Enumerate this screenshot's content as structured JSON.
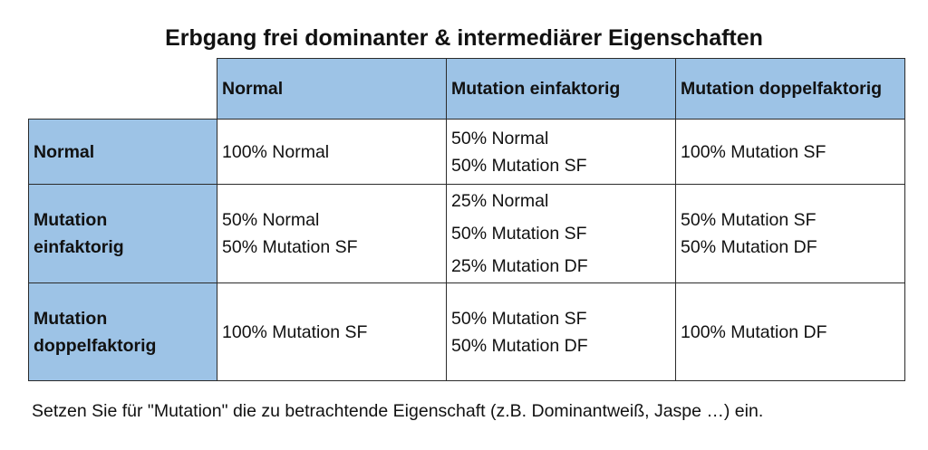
{
  "title": "Erbgang frei dominanter & intermediärer Eigenschaften",
  "colors": {
    "header_fill": "#9dc3e6",
    "border": "#2b2b2b"
  },
  "table": {
    "column_headers": [
      "Normal",
      "Mutation einfaktorig",
      "Mutation doppelfaktorig"
    ],
    "rows": [
      {
        "header": [
          "Normal"
        ],
        "cells": [
          [
            "100% Normal"
          ],
          [
            "50% Normal",
            "50% Mutation SF"
          ],
          [
            "100% Mutation SF"
          ]
        ]
      },
      {
        "header": [
          "Mutation",
          "einfaktorig"
        ],
        "cells": [
          [
            "50% Normal",
            "50% Mutation SF"
          ],
          [
            "25% Normal",
            "50% Mutation SF",
            "25% Mutation DF"
          ],
          [
            "50% Mutation SF",
            "50% Mutation DF"
          ]
        ]
      },
      {
        "header": [
          "Mutation",
          "doppelfaktorig"
        ],
        "cells": [
          [
            "100% Mutation SF"
          ],
          [
            "50% Mutation SF",
            "50% Mutation DF"
          ],
          [
            "100% Mutation DF"
          ]
        ]
      }
    ]
  },
  "footnote": "Setzen Sie für \"Mutation\" die zu betrachtende Eigenschaft (z.B. Dominantweiß, Jaspe …) ein."
}
